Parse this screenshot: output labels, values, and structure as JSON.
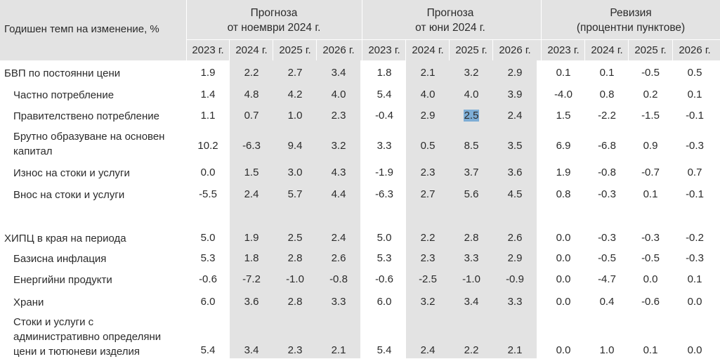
{
  "header": {
    "label": "Годишен темп на изменение, %",
    "groups": [
      {
        "line1": "Прогноза",
        "line2": "от ноември 2024 г."
      },
      {
        "line1": "Прогноза",
        "line2": "от юни 2024 г."
      },
      {
        "line1": "Ревизия",
        "line2": "(процентни пунктове)"
      }
    ],
    "years": [
      "2023 г.",
      "2024 г.",
      "2025 г.",
      "2026 г.",
      "2023 г.",
      "2024 г.",
      "2025 г.",
      "2026 г.",
      "2023 г.",
      "2024 г.",
      "2025 г.",
      "2026 г."
    ]
  },
  "rows": [
    {
      "label": [
        "БВП по постоянни цени"
      ],
      "values": [
        "1.9",
        "2.2",
        "2.7",
        "3.4",
        "1.8",
        "2.1",
        "3.2",
        "2.9",
        "0.1",
        "0.1",
        "-0.5",
        "0.5"
      ]
    },
    {
      "label": [
        "Частно потребление"
      ],
      "values": [
        "1.4",
        "4.8",
        "4.2",
        "4.0",
        "5.4",
        "4.0",
        "4.0",
        "3.9",
        "-4.0",
        "0.8",
        "0.2",
        "0.1"
      ]
    },
    {
      "label": [
        "Правителствено потребление"
      ],
      "values": [
        "1.1",
        "0.7",
        "1.0",
        "2.3",
        "-0.4",
        "2.9",
        "2.5",
        "2.4",
        "1.5",
        "-2.2",
        "-1.5",
        "-0.1"
      ]
    },
    {
      "label": [
        "Брутно образуване на основен",
        "капитал"
      ],
      "values": [
        "10.2",
        "-6.3",
        "9.4",
        "3.2",
        "3.3",
        "0.5",
        "8.5",
        "3.5",
        "6.9",
        "-6.8",
        "0.9",
        "-0.3"
      ]
    },
    {
      "label": [
        "Износ на стоки и услуги"
      ],
      "values": [
        "0.0",
        "1.5",
        "3.0",
        "4.3",
        "-1.9",
        "2.3",
        "3.7",
        "3.6",
        "1.9",
        "-0.8",
        "-0.7",
        "0.7"
      ]
    },
    {
      "label": [
        "Внос на стоки и услуги"
      ],
      "values": [
        "-5.5",
        "2.4",
        "5.7",
        "4.4",
        "-6.3",
        "2.7",
        "5.6",
        "4.5",
        "0.8",
        "-0.3",
        "0.1",
        "-0.1"
      ]
    },
    {
      "label": [
        "ХИПЦ в края на периода"
      ],
      "values": [
        "5.0",
        "1.9",
        "2.5",
        "2.4",
        "5.0",
        "2.2",
        "2.8",
        "2.6",
        "0.0",
        "-0.3",
        "-0.3",
        "-0.2"
      ]
    },
    {
      "label": [
        "Базисна инфлация"
      ],
      "values": [
        "5.3",
        "1.8",
        "2.8",
        "2.6",
        "5.3",
        "2.3",
        "3.3",
        "2.9",
        "0.0",
        "-0.5",
        "-0.5",
        "-0.3"
      ]
    },
    {
      "label": [
        "Енергийни продукти"
      ],
      "values": [
        "-0.6",
        "-7.2",
        "-1.0",
        "-0.8",
        "-0.6",
        "-2.5",
        "-1.0",
        "-0.9",
        "0.0",
        "-4.7",
        "0.0",
        "0.1"
      ]
    },
    {
      "label": [
        "Храни"
      ],
      "values": [
        "6.0",
        "3.6",
        "2.8",
        "3.3",
        "6.0",
        "3.2",
        "3.4",
        "3.3",
        "0.0",
        "0.4",
        "-0.6",
        "0.0"
      ]
    },
    {
      "label": [
        "Стоки и услуги с",
        "административно определяни",
        "цени и тютюневи изделия"
      ],
      "values": [
        "5.4",
        "3.4",
        "2.3",
        "2.1",
        "5.4",
        "2.4",
        "2.2",
        "2.1",
        "0.0",
        "1.0",
        "0.1",
        "0.0"
      ]
    }
  ],
  "highlight": {
    "row": 2,
    "col": 6
  }
}
